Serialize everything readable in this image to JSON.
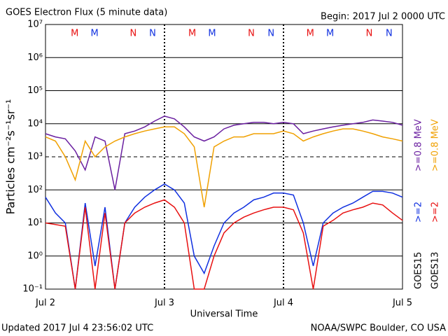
{
  "chart_data": {
    "type": "line",
    "title": "GOES Electron Flux (5 minute data)",
    "begin_label": "Begin: 2017 Jul 2 0000 UTC",
    "updated_label": "Updated 2017 Jul  4 23:56:02 UTC",
    "source_label": "NOAA/SWPC Boulder, CO USA",
    "x_label": "Universal Time",
    "y_label": "Particles cm⁻²s⁻¹sr⁻¹",
    "log_y": true,
    "grid": true,
    "alert_threshold": 1000,
    "satellites": [
      "GOES15",
      "GOES13"
    ],
    "x": [
      0,
      2,
      4,
      6,
      8,
      10,
      12,
      14,
      16,
      18,
      20,
      22,
      24,
      26,
      28,
      30,
      32,
      34,
      36,
      38,
      40,
      42,
      44,
      46,
      48,
      50,
      52,
      54,
      56,
      58,
      60,
      62,
      64,
      66,
      68,
      70,
      72
    ],
    "xlim": [
      0,
      72
    ],
    "xticks": [
      {
        "value": 0,
        "label": "Jul 2"
      },
      {
        "value": 24,
        "label": "Jul 3"
      },
      {
        "value": 48,
        "label": "Jul 4"
      },
      {
        "value": 72,
        "label": "Jul 5"
      }
    ],
    "ylim": [
      0.1,
      10000000
    ],
    "yticks": [
      {
        "value": 0.1,
        "label": "10⁻¹"
      },
      {
        "value": 1,
        "label": "10⁰"
      },
      {
        "value": 10,
        "label": "10¹"
      },
      {
        "value": 100,
        "label": "10²"
      },
      {
        "value": 1000,
        "label": "10³"
      },
      {
        "value": 10000,
        "label": "10⁴"
      },
      {
        "value": 100000,
        "label": "10⁵"
      },
      {
        "value": 1000000,
        "label": "10⁶"
      },
      {
        "value": 10000000,
        "label": "10⁷"
      }
    ],
    "series": [
      {
        "name": ">=0.8 MeV",
        "color": "#6a1fa0",
        "values": [
          5000,
          4000,
          3500,
          1500,
          400,
          4000,
          3000,
          100,
          5000,
          6000,
          8000,
          12000,
          17000,
          14000,
          8000,
          4000,
          3000,
          4000,
          7000,
          9000,
          10000,
          11000,
          11000,
          10000,
          11000,
          10000,
          5000,
          6000,
          7000,
          8000,
          9000,
          10000,
          11000,
          13000,
          12000,
          11000,
          9000
        ]
      },
      {
        "name": ">=0.8 MeV",
        "color": "#f0a000",
        "values": [
          4000,
          3000,
          1000,
          200,
          3000,
          1000,
          2000,
          3000,
          4000,
          5000,
          6000,
          7000,
          8000,
          8000,
          5000,
          2000,
          30,
          2000,
          3000,
          4000,
          4000,
          5000,
          5000,
          5000,
          6000,
          5000,
          3000,
          4000,
          5000,
          6000,
          7000,
          7000,
          6000,
          5000,
          4000,
          3500,
          3000
        ]
      },
      {
        "name": ">=2",
        "color": "#1030e0",
        "values": [
          60,
          20,
          10,
          0.1,
          40,
          0.5,
          30,
          0.1,
          10,
          30,
          60,
          100,
          150,
          100,
          40,
          1,
          0.3,
          2,
          10,
          20,
          30,
          50,
          60,
          80,
          80,
          70,
          10,
          0.5,
          10,
          20,
          30,
          40,
          60,
          90,
          90,
          80,
          60
        ]
      },
      {
        "name": ">=2",
        "color": "#e81010",
        "values": [
          10,
          9,
          8,
          0.1,
          30,
          0.1,
          20,
          0.1,
          10,
          20,
          30,
          40,
          50,
          30,
          10,
          0.1,
          0.1,
          1,
          5,
          10,
          15,
          20,
          25,
          30,
          30,
          25,
          5,
          0.1,
          8,
          12,
          20,
          25,
          30,
          40,
          35,
          20,
          12
        ]
      }
    ],
    "annotations": [
      {
        "text": "M",
        "x": 5.9,
        "color": "#e81010"
      },
      {
        "text": "M",
        "x": 9.9,
        "color": "#1030e0"
      },
      {
        "text": "N",
        "x": 17.7,
        "color": "#e81010"
      },
      {
        "text": "N",
        "x": 21.6,
        "color": "#1030e0"
      },
      {
        "text": "M",
        "x": 29.6,
        "color": "#e81010"
      },
      {
        "text": "M",
        "x": 33.6,
        "color": "#1030e0"
      },
      {
        "text": "N",
        "x": 41.5,
        "color": "#e81010"
      },
      {
        "text": "N",
        "x": 45.5,
        "color": "#1030e0"
      },
      {
        "text": "M",
        "x": 53.4,
        "color": "#e81010"
      },
      {
        "text": "M",
        "x": 57.4,
        "color": "#1030e0"
      },
      {
        "text": "N",
        "x": 65.3,
        "color": "#e81010"
      },
      {
        "text": "N",
        "x": 69.3,
        "color": "#1030e0"
      }
    ]
  }
}
